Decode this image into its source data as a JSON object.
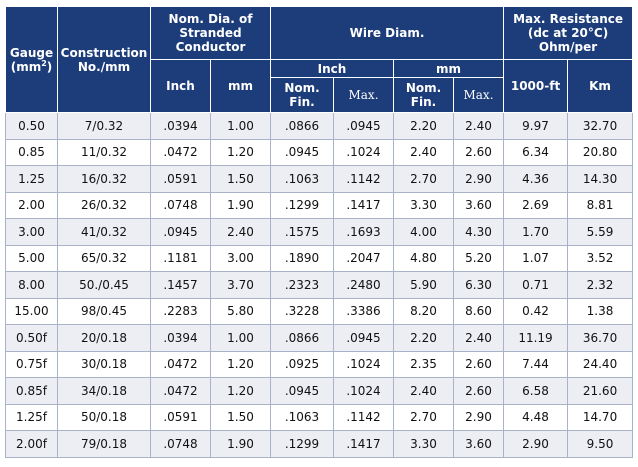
{
  "header": {
    "gauge": "Gauge",
    "gauge_unit_pre": "(mm",
    "gauge_unit_sup": "2",
    "gauge_unit_post": ")",
    "construction_line1": "Construction",
    "construction_line2": "No./mm",
    "nom_dia": "Nom. Dia. of Stranded Conductor",
    "wire_diam": "Wire Diam.",
    "max_resistance": "Max. Resistance (dc at 20°C) Ohm/per",
    "inch": "Inch",
    "mm": "mm",
    "wire_inch": "Inch",
    "wire_mm": "mm",
    "nom_fin": "Nom. Fin.",
    "max": "Max.",
    "nom_fin_2": "Nom. Fin.",
    "max_2": "Max.",
    "per_1000ft": "1000-ft",
    "per_km": "Km"
  },
  "rows": [
    [
      "0.50",
      "7/0.32",
      ".0394",
      "1.00",
      ".0866",
      ".0945",
      "2.20",
      "2.40",
      "9.97",
      "32.70"
    ],
    [
      "0.85",
      "11/0.32",
      ".0472",
      "1.20",
      ".0945",
      ".1024",
      "2.40",
      "2.60",
      "6.34",
      "20.80"
    ],
    [
      "1.25",
      "16/0.32",
      ".0591",
      "1.50",
      ".1063",
      ".1142",
      "2.70",
      "2.90",
      "4.36",
      "14.30"
    ],
    [
      "2.00",
      "26/0.32",
      ".0748",
      "1.90",
      ".1299",
      ".1417",
      "3.30",
      "3.60",
      "2.69",
      "8.81"
    ],
    [
      "3.00",
      "41/0.32",
      ".0945",
      "2.40",
      ".1575",
      ".1693",
      "4.00",
      "4.30",
      "1.70",
      "5.59"
    ],
    [
      "5.00",
      "65/0.32",
      ".1181",
      "3.00",
      ".1890",
      ".2047",
      "4.80",
      "5.20",
      "1.07",
      "3.52"
    ],
    [
      "8.00",
      "50./0.45",
      ".1457",
      "3.70",
      ".2323",
      ".2480",
      "5.90",
      "6.30",
      "0.71",
      "2.32"
    ],
    [
      "15.00",
      "98/0.45",
      ".2283",
      "5.80",
      ".3228",
      ".3386",
      "8.20",
      "8.60",
      "0.42",
      "1.38"
    ],
    [
      "0.50f",
      "20/0.18",
      ".0394",
      "1.00",
      ".0866",
      ".0945",
      "2.20",
      "2.40",
      "11.19",
      "36.70"
    ],
    [
      "0.75f",
      "30/0.18",
      ".0472",
      "1.20",
      ".0925",
      ".1024",
      "2.35",
      "2.60",
      "7.44",
      "24.40"
    ],
    [
      "0.85f",
      "34/0.18",
      ".0472",
      "1.20",
      ".0945",
      ".1024",
      "2.40",
      "2.60",
      "6.58",
      "21.60"
    ],
    [
      "1.25f",
      "50/0.18",
      ".0591",
      "1.50",
      ".1063",
      ".1142",
      "2.70",
      "2.90",
      "4.48",
      "14.70"
    ],
    [
      "2.00f",
      "79/0.18",
      ".0748",
      "1.90",
      ".1299",
      ".1417",
      "3.30",
      "3.60",
      "2.90",
      "9.50"
    ]
  ]
}
